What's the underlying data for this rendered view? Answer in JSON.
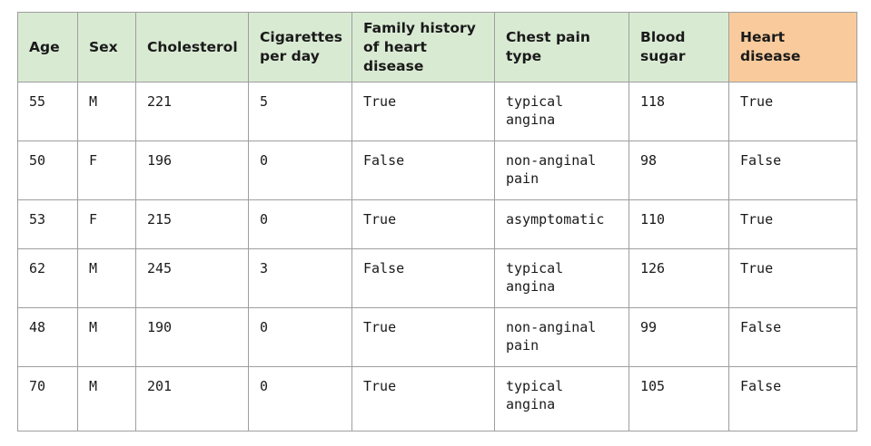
{
  "table": {
    "headers": [
      "Age",
      "Sex",
      "Cholesterol",
      "Cigarettes per day",
      "Family history of heart disease",
      "Chest pain type",
      "Blood sugar",
      "Heart disease"
    ],
    "rows": [
      [
        "55",
        "M",
        "221",
        "5",
        "True",
        "typical angina",
        "118",
        "True"
      ],
      [
        "50",
        "F",
        "196",
        "0",
        "False",
        "non-anginal pain",
        "98",
        "False"
      ],
      [
        "53",
        "F",
        "215",
        "0",
        "True",
        "asymptomatic",
        "110",
        "True"
      ],
      [
        "62",
        "M",
        "245",
        "3",
        "False",
        "typical angina",
        "126",
        "True"
      ],
      [
        "48",
        "M",
        "190",
        "0",
        "True",
        "non-anginal pain",
        "99",
        "False"
      ],
      [
        "70",
        "M",
        "201",
        "0",
        "True",
        "typical angina",
        "105",
        "False"
      ]
    ]
  },
  "colors": {
    "header_bg": "#d9ead3",
    "target_header_bg": "#f9cb9c",
    "border": "#9e9e9e"
  }
}
